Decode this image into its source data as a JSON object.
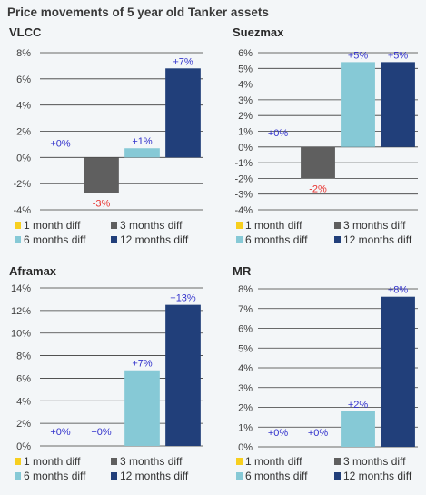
{
  "title": "Price movements of 5 year old Tanker assets",
  "colors": {
    "1 month diff": "#f7cf1f",
    "3 months diff": "#5f5f5f",
    "6 months diff": "#86c9d6",
    "12 months diff": "#213f7a",
    "label": "#3333cc",
    "negative_label": "#e8322e",
    "grid": "#3a3a3a",
    "axis_text": "#404040"
  },
  "chart_data": [
    {
      "type": "bar",
      "title": "VLCC",
      "categories": [
        "1 month diff",
        "3 months diff",
        "6 months diff",
        "12 months diff"
      ],
      "values": [
        0,
        -2.7,
        0.7,
        6.8
      ],
      "data_labels": [
        "+0%",
        "-3%",
        "+1%",
        "+7%"
      ],
      "yticks": [
        "8%",
        "6%",
        "4%",
        "2%",
        "0%",
        "-2%",
        "-4%"
      ],
      "ylim": [
        -4,
        8
      ],
      "ystep": 2,
      "grid": true,
      "legend": "bottom"
    },
    {
      "type": "bar",
      "title": "Suezmax",
      "categories": [
        "1 month diff",
        "3 months diff",
        "6 months diff",
        "12 months diff"
      ],
      "values": [
        0,
        -2.0,
        5.4,
        5.4
      ],
      "data_labels": [
        "+0%",
        "-2%",
        "+5%",
        "+5%"
      ],
      "yticks": [
        "6%",
        "5%",
        "4%",
        "3%",
        "2%",
        "1%",
        "0%",
        "-1%",
        "-2%",
        "-3%",
        "-4%"
      ],
      "ylim": [
        -4,
        6
      ],
      "ystep": 1,
      "grid": true,
      "legend": "bottom"
    },
    {
      "type": "bar",
      "title": "Aframax",
      "categories": [
        "1 month diff",
        "3 months diff",
        "6 months diff",
        "12 months diff"
      ],
      "values": [
        0,
        0,
        6.7,
        12.5
      ],
      "data_labels": [
        "+0%",
        "+0%",
        "+7%",
        "+13%"
      ],
      "yticks": [
        "14%",
        "12%",
        "10%",
        "8%",
        "6%",
        "4%",
        "2%",
        "0%"
      ],
      "ylim": [
        0,
        14
      ],
      "ystep": 2,
      "grid": true,
      "legend": "bottom"
    },
    {
      "type": "bar",
      "title": "MR",
      "categories": [
        "1 month diff",
        "3 months diff",
        "6 months diff",
        "12 months diff"
      ],
      "values": [
        0,
        0,
        1.8,
        7.6
      ],
      "data_labels": [
        "+0%",
        "+0%",
        "+2%",
        "+8%"
      ],
      "yticks": [
        "8%",
        "7%",
        "6%",
        "5%",
        "4%",
        "3%",
        "2%",
        "1%",
        "0%"
      ],
      "ylim": [
        0,
        8
      ],
      "ystep": 1,
      "grid": true,
      "legend": "bottom"
    }
  ]
}
